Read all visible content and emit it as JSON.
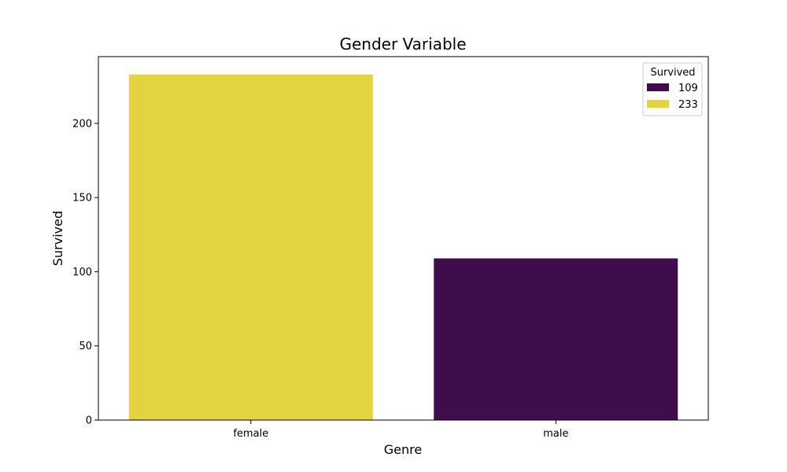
{
  "chart_data": {
    "type": "bar",
    "title": "Gender Variable",
    "xlabel": "Genre",
    "ylabel": "Survived",
    "categories": [
      "female",
      "male"
    ],
    "values": [
      233,
      109
    ],
    "bar_colors": [
      "#e2d33f",
      "#3f0d4b"
    ],
    "ylim": [
      0,
      245
    ],
    "yticks": [
      0,
      50,
      100,
      150,
      200
    ],
    "grid": false,
    "legend": {
      "title": "Survived",
      "placement": "top-right",
      "entries": [
        {
          "label": "109",
          "color": "#3f0d4b"
        },
        {
          "label": "233",
          "color": "#e2d33f"
        }
      ]
    }
  }
}
